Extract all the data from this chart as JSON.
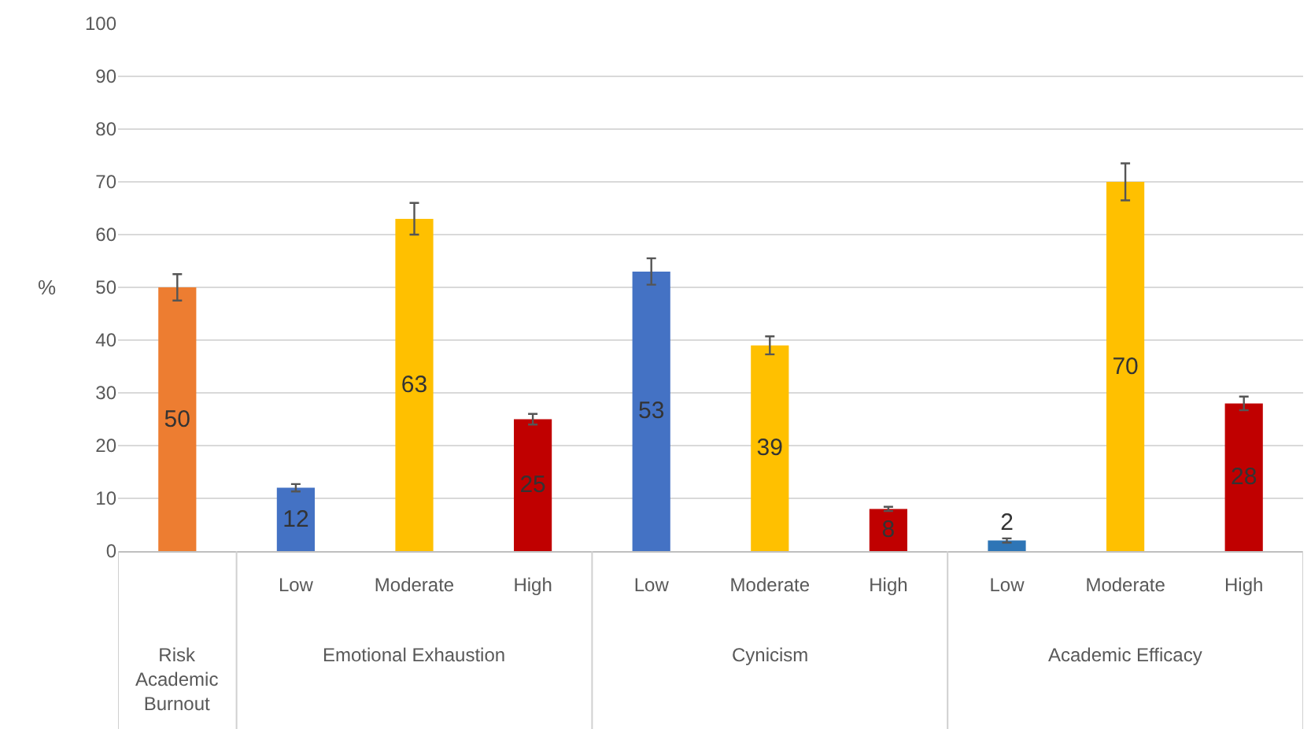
{
  "chart_data": {
    "type": "bar",
    "ylabel": "%",
    "categories": [
      null,
      "Low",
      "Moderate",
      "High",
      "Low",
      "Moderate",
      "High",
      "Low",
      "Moderate",
      "High"
    ],
    "values": [
      50,
      12,
      63,
      25,
      53,
      39,
      8,
      2,
      70,
      28
    ],
    "errors": [
      2.5,
      0.7,
      3,
      1,
      2.5,
      1.7,
      0.4,
      0.4,
      3.5,
      1.3
    ],
    "colors": [
      "#ed7d31",
      "#4472c4",
      "#ffc000",
      "#c00000",
      "#4472c4",
      "#ffc000",
      "#c00000",
      "#2e75b6",
      "#ffc000",
      "#c00000"
    ],
    "annotations": [
      "Risk Academic Burnout",
      "Emotional Exhaustion",
      "Cynicism",
      "Academic Efficacy"
    ],
    "data_labels": true,
    "ylim": [
      0,
      100
    ],
    "yticks": [
      0,
      10,
      20,
      30,
      40,
      50,
      60,
      70,
      80,
      90,
      100
    ],
    "grid": "y"
  }
}
